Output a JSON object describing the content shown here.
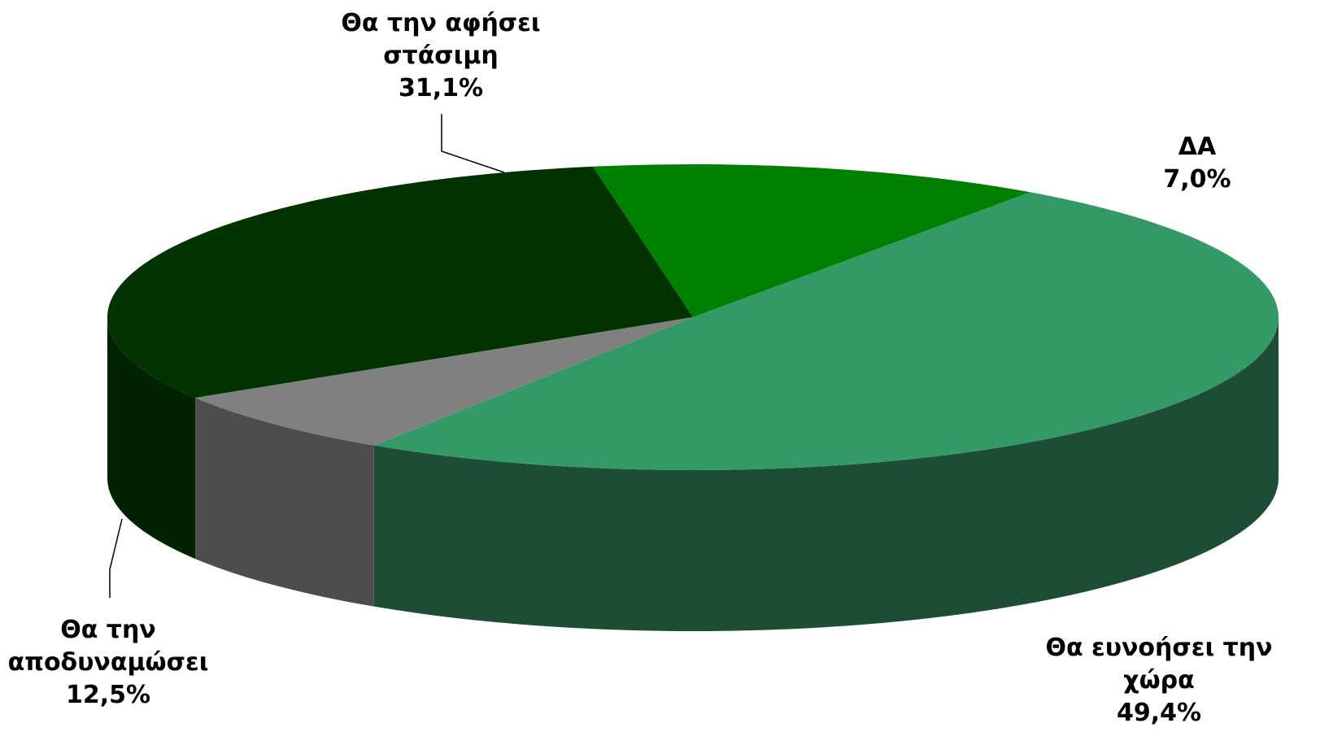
{
  "chart_data": {
    "type": "pie",
    "style": "3d-tilted",
    "legend": "none",
    "slices": [
      {
        "label_lines": [
          "Θα ευνοήσει την",
          "χώρα"
        ],
        "value_text": "49,4%",
        "value": 49.4,
        "color_top": "#339966",
        "color_side": "#1e4d35"
      },
      {
        "label_lines": [
          "Θα την",
          "αποδυναμώσει"
        ],
        "value_text": "12,5%",
        "value": 12.5,
        "color_top": "#008000",
        "color_side": "#003300"
      },
      {
        "label_lines": [
          "Θα την αφήσει",
          "στάσιμη"
        ],
        "value_text": "31,1%",
        "value": 31.1,
        "color_top": "#003300",
        "color_side": "#002200"
      },
      {
        "label_lines": [
          "ΔΑ"
        ],
        "value_text": "7,0%",
        "value": 7.0,
        "color_top": "#808080",
        "color_side": "#4d4d4d"
      }
    ]
  }
}
